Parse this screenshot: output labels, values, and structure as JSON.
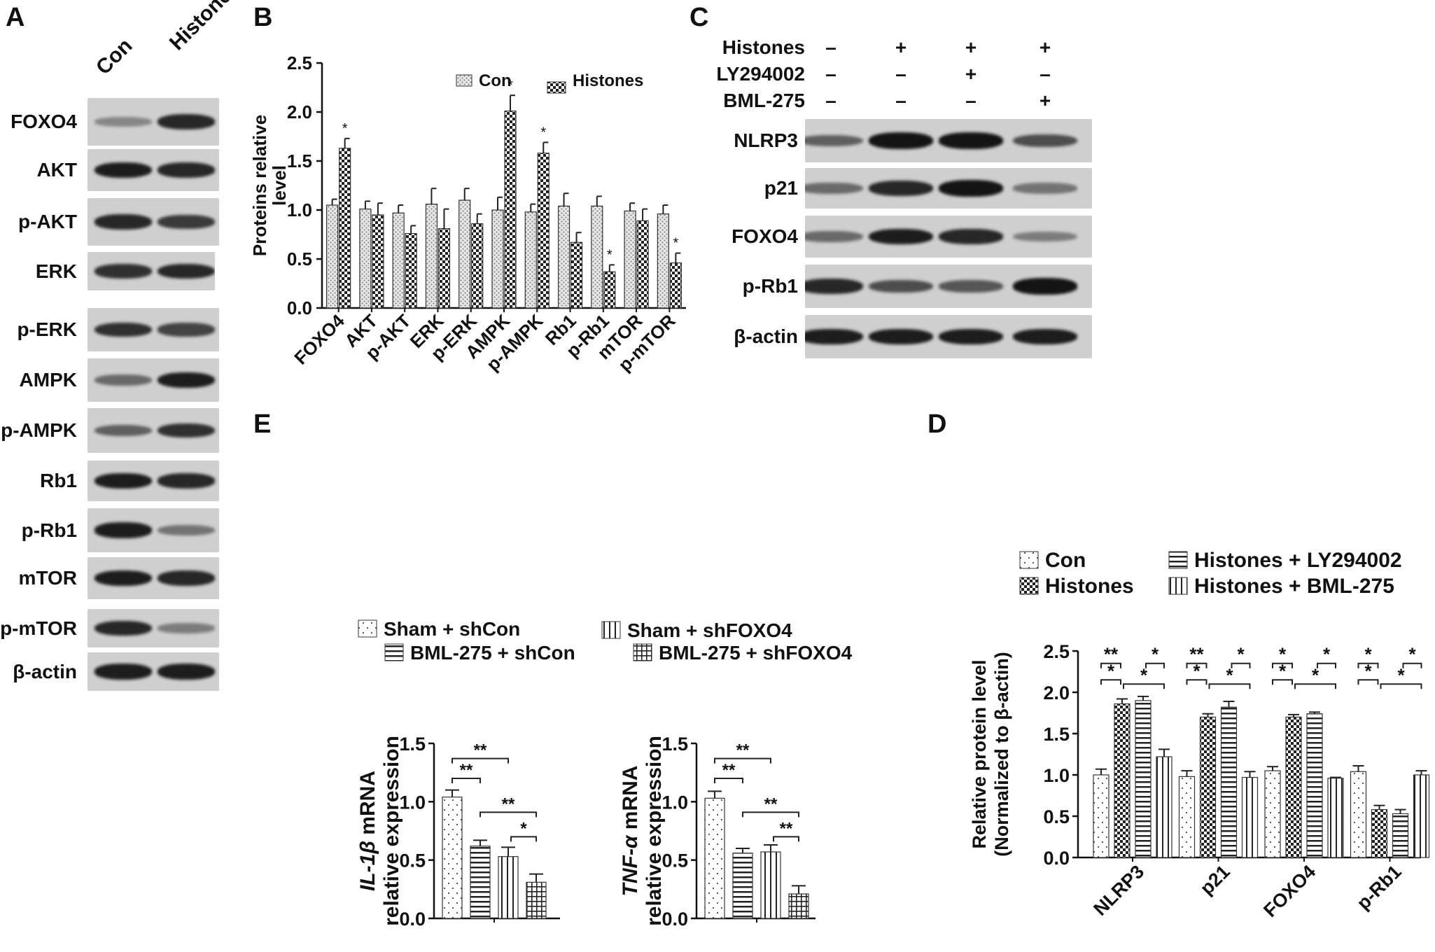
{
  "panels": {
    "A": {
      "letter": "A",
      "lanes": [
        "Con",
        "Histones"
      ],
      "rows": [
        {
          "label": "FOXO4",
          "intensity": [
            0.35,
            0.85
          ]
        },
        {
          "label": "AKT",
          "intensity": [
            0.9,
            0.85
          ]
        },
        {
          "label": "p-AKT",
          "intensity": [
            0.85,
            0.75
          ]
        },
        {
          "label": "ERK",
          "intensity": [
            0.8,
            0.85
          ]
        },
        {
          "label": "p-ERK",
          "intensity": [
            0.8,
            0.7
          ]
        },
        {
          "label": "AMPK",
          "intensity": [
            0.5,
            0.9
          ]
        },
        {
          "label": "p-AMPK",
          "intensity": [
            0.55,
            0.8
          ]
        },
        {
          "label": "Rb1",
          "intensity": [
            0.9,
            0.85
          ]
        },
        {
          "label": "p-Rb1",
          "intensity": [
            0.9,
            0.45
          ]
        },
        {
          "label": "mTOR",
          "intensity": [
            0.9,
            0.85
          ]
        },
        {
          "label": "p-mTOR",
          "intensity": [
            0.85,
            0.4
          ]
        },
        {
          "label": "β-actin",
          "intensity": [
            0.9,
            0.9
          ]
        }
      ]
    },
    "C": {
      "letter": "C",
      "treatments": [
        {
          "name": "Histones",
          "signs": [
            "–",
            "+",
            "+",
            "+"
          ]
        },
        {
          "name": "LY294002",
          "signs": [
            "–",
            "–",
            "+",
            "–"
          ]
        },
        {
          "name": "BML-275",
          "signs": [
            "–",
            "–",
            "–",
            "+"
          ]
        }
      ],
      "rows": [
        {
          "label": "NLRP3",
          "intensity": [
            0.55,
            0.95,
            0.95,
            0.65
          ]
        },
        {
          "label": "p21",
          "intensity": [
            0.5,
            0.85,
            0.95,
            0.45
          ]
        },
        {
          "label": "FOXO4",
          "intensity": [
            0.5,
            0.9,
            0.85,
            0.4
          ]
        },
        {
          "label": "p-Rb1",
          "intensity": [
            0.85,
            0.65,
            0.6,
            0.95
          ]
        },
        {
          "label": "β-actin",
          "intensity": [
            0.9,
            0.9,
            0.9,
            0.9
          ]
        }
      ]
    },
    "B_letter": "B",
    "D_letter": "D",
    "E_letter": "E"
  },
  "chart_data": [
    {
      "id": "B",
      "type": "bar",
      "ylabel": "Proteins relative level",
      "ylim": [
        0,
        2.5
      ],
      "yticks": [
        "0.0",
        "0.5",
        "1.0",
        "1.5",
        "2.0",
        "2.5"
      ],
      "categories": [
        "FOXO4",
        "AKT",
        "p-AKT",
        "ERK",
        "p-ERK",
        "AMPK",
        "p-AMPK",
        "Rb1",
        "p-Rb1",
        "mTOR",
        "p-mTOR"
      ],
      "series": [
        {
          "name": "Con",
          "values": [
            1.05,
            1.01,
            0.97,
            1.06,
            1.1,
            1.0,
            0.98,
            1.04,
            1.04,
            0.99,
            0.96
          ],
          "errors": [
            0.06,
            0.08,
            0.08,
            0.16,
            0.12,
            0.13,
            0.08,
            0.13,
            0.1,
            0.08,
            0.09
          ]
        },
        {
          "name": "Histones",
          "values": [
            1.63,
            0.95,
            0.76,
            0.81,
            0.86,
            2.01,
            1.58,
            0.67,
            0.37,
            0.89,
            0.46
          ],
          "errors": [
            0.1,
            0.12,
            0.08,
            0.2,
            0.1,
            0.16,
            0.11,
            0.1,
            0.07,
            0.12,
            0.1
          ]
        }
      ],
      "annotations": [
        {
          "category": "FOXO4",
          "text": "*"
        },
        {
          "category": "AMPK",
          "text": "*"
        },
        {
          "category": "p-AMPK",
          "text": "*"
        },
        {
          "category": "p-Rb1",
          "text": "*"
        },
        {
          "category": "p-mTOR",
          "text": "*"
        }
      ],
      "legend_position": "top"
    },
    {
      "id": "D",
      "type": "bar",
      "ylabel": "Relative protein level (Normalized to β-actin)",
      "ylabel_lines": [
        "Relative protein level",
        "(Normalized to β-actin)"
      ],
      "ylim": [
        0,
        2.5
      ],
      "yticks": [
        "0.0",
        "0.5",
        "1.0",
        "1.5",
        "2.0",
        "2.5"
      ],
      "categories": [
        "NLRP3",
        "p21",
        "FOXO4",
        "p-Rb1"
      ],
      "series": [
        {
          "name": "Con",
          "values": [
            1.0,
            0.98,
            1.05,
            1.04
          ],
          "errors": [
            0.07,
            0.07,
            0.05,
            0.07
          ]
        },
        {
          "name": "Histones",
          "values": [
            1.86,
            1.7,
            1.7,
            0.58
          ],
          "errors": [
            0.06,
            0.04,
            0.03,
            0.05
          ]
        },
        {
          "name": "Histones + LY294002",
          "values": [
            1.9,
            1.82,
            1.74,
            0.53
          ],
          "errors": [
            0.05,
            0.07,
            0.02,
            0.05
          ]
        },
        {
          "name": "Histones + BML-275",
          "values": [
            1.22,
            0.97,
            0.96,
            1.0
          ],
          "errors": [
            0.09,
            0.07,
            0.01,
            0.05
          ]
        }
      ],
      "significance": [
        {
          "category": "NLRP3",
          "marks": [
            "**",
            "*",
            "*",
            "*"
          ]
        },
        {
          "category": "p21",
          "marks": [
            "**",
            "*",
            "*",
            "*"
          ]
        },
        {
          "category": "FOXO4",
          "marks": [
            "*",
            "*",
            "*",
            "*"
          ]
        },
        {
          "category": "p-Rb1",
          "marks": [
            "*",
            "*",
            "*",
            "*"
          ]
        }
      ],
      "legend_position": "top"
    },
    {
      "id": "E1",
      "type": "bar",
      "ylabel_gene": "IL-1β",
      "ylabel_suffix": "mRNA",
      "ylabel_line2": "relative expression",
      "ylim": [
        0,
        1.5
      ],
      "yticks": [
        "0.0",
        "0.5",
        "1.0",
        "1.5"
      ],
      "series": [
        {
          "name": "Sham + shCon",
          "value": 1.04,
          "error": 0.06
        },
        {
          "name": "BML-275 + shCon",
          "value": 0.62,
          "error": 0.05
        },
        {
          "name": "Sham + shFOXO4",
          "value": 0.53,
          "error": 0.08
        },
        {
          "name": "BML-275 + shFOXO4",
          "value": 0.31,
          "error": 0.07
        }
      ],
      "significance": [
        "**",
        "**",
        "**",
        "*"
      ]
    },
    {
      "id": "E2",
      "type": "bar",
      "ylabel_gene": "TNF-α",
      "ylabel_suffix": "mRNA",
      "ylabel_line2": "relative expression",
      "ylim": [
        0,
        1.5
      ],
      "yticks": [
        "0.0",
        "0.5",
        "1.0",
        "1.5"
      ],
      "series": [
        {
          "name": "Sham + shCon",
          "value": 1.03,
          "error": 0.06
        },
        {
          "name": "BML-275 + shCon",
          "value": 0.56,
          "error": 0.04
        },
        {
          "name": "Sham + shFOXO4",
          "value": 0.57,
          "error": 0.06
        },
        {
          "name": "BML-275 + shFOXO4",
          "value": 0.21,
          "error": 0.07
        }
      ],
      "significance": [
        "**",
        "**",
        "**",
        "**"
      ]
    }
  ],
  "E_legend": [
    "Sham + shCon",
    "Sham + shFOXO4",
    "BML-275 + shCon",
    "BML-275 + shFOXO4"
  ]
}
